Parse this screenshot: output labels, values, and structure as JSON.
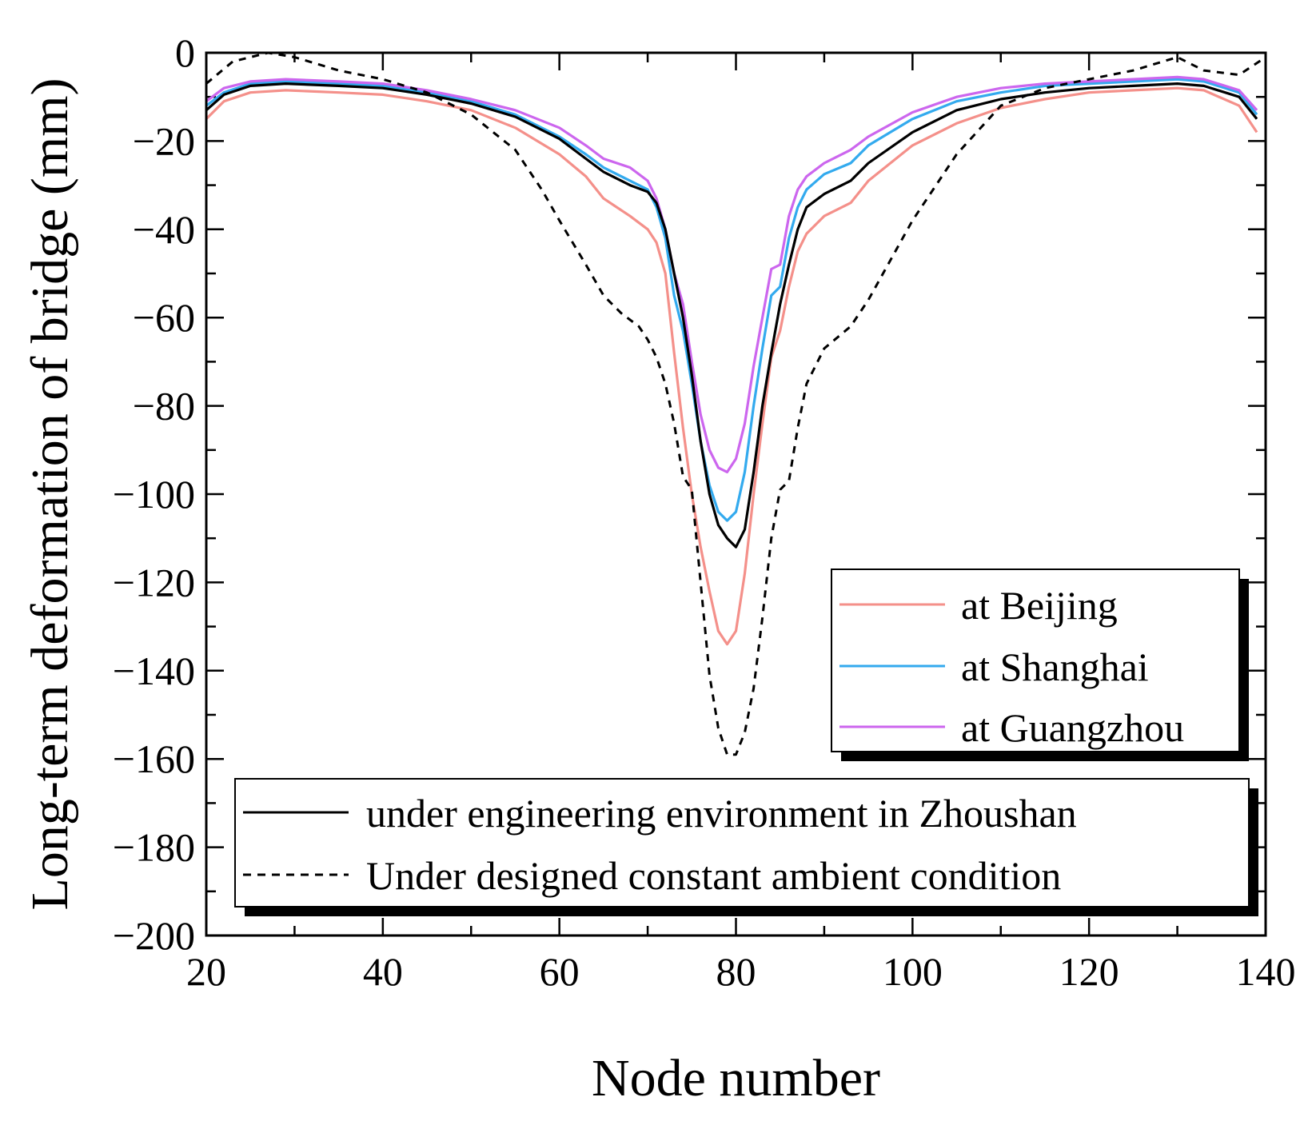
{
  "chart_data": {
    "type": "line",
    "title": "",
    "xlabel": "Node number",
    "ylabel": "Long-term deformation of bridge (mm)",
    "xlim": [
      20,
      140
    ],
    "ylim": [
      -200,
      0
    ],
    "x_ticks": [
      20,
      40,
      60,
      80,
      100,
      120,
      140
    ],
    "y_ticks": [
      0,
      -20,
      -40,
      -60,
      -80,
      -100,
      -120,
      -140,
      -160,
      -180,
      -200
    ],
    "x_tick_labels": [
      "20",
      "40",
      "60",
      "80",
      "100",
      "120",
      "140"
    ],
    "y_tick_labels": [
      "0",
      "−20",
      "−40",
      "−60",
      "−80",
      "−100",
      "−120",
      "−140",
      "−160",
      "−180",
      "−200"
    ],
    "legend_cities": {
      "placement": "center-right",
      "entries": [
        "at Beijing",
        "at Shanghai",
        "at Guangzhou"
      ]
    },
    "legend_conditions": {
      "placement": "bottom-right",
      "entries": [
        "under engineering environment in Zhoushan",
        "Under designed constant ambient condition"
      ]
    },
    "series": [
      {
        "name": "at Beijing",
        "color": "#f4908a",
        "dash": "solid",
        "x": [
          20,
          22,
          25,
          29,
          35,
          40,
          45,
          50,
          55,
          60,
          63,
          65,
          68,
          70,
          71,
          72,
          73,
          74,
          75,
          76,
          77,
          78,
          79,
          80,
          81,
          82,
          83,
          84,
          85,
          86,
          87,
          88,
          90,
          93,
          95,
          100,
          105,
          110,
          115,
          120,
          125,
          130,
          133,
          137,
          139
        ],
        "values": [
          -15,
          -11,
          -9,
          -8.5,
          -9,
          -9.5,
          -11,
          -13,
          -17,
          -23,
          -28,
          -33,
          -37,
          -40,
          -43,
          -50,
          -68,
          -85,
          -100,
          -112,
          -122,
          -131,
          -134,
          -131,
          -118,
          -100,
          -84,
          -69,
          -63,
          -53,
          -45,
          -41,
          -37,
          -34,
          -29,
          -21,
          -16,
          -12.5,
          -10.5,
          -9,
          -8.5,
          -8,
          -8.5,
          -12,
          -18
        ]
      },
      {
        "name": "at Shanghai",
        "color": "#33aaee",
        "dash": "solid",
        "x": [
          20,
          22,
          25,
          29,
          35,
          40,
          45,
          50,
          55,
          60,
          63,
          65,
          68,
          70,
          71,
          72,
          73,
          74,
          75,
          76,
          77,
          78,
          79,
          80,
          81,
          82,
          83,
          84,
          85,
          86,
          87,
          88,
          90,
          93,
          95,
          100,
          105,
          110,
          115,
          120,
          125,
          130,
          133,
          137,
          139
        ],
        "values": [
          -12,
          -9,
          -7,
          -6.5,
          -7,
          -7.5,
          -9,
          -11,
          -14,
          -19,
          -23,
          -26,
          -29,
          -31,
          -35,
          -42,
          -55,
          -63,
          -75,
          -88,
          -98,
          -104,
          -106,
          -104,
          -95,
          -80,
          -67,
          -55,
          -53,
          -42,
          -35,
          -31,
          -27.5,
          -25,
          -21,
          -15,
          -11,
          -9,
          -7.5,
          -7,
          -6.5,
          -6,
          -6.5,
          -9,
          -14
        ]
      },
      {
        "name": "at Guangzhou",
        "color": "#cc66ee",
        "dash": "solid",
        "x": [
          20,
          22,
          25,
          29,
          35,
          40,
          45,
          50,
          55,
          60,
          63,
          65,
          68,
          70,
          71,
          72,
          73,
          74,
          75,
          76,
          77,
          78,
          79,
          80,
          81,
          82,
          83,
          84,
          85,
          86,
          87,
          88,
          90,
          93,
          95,
          100,
          105,
          110,
          115,
          120,
          125,
          130,
          133,
          137,
          139
        ],
        "values": [
          -11,
          -8,
          -6.5,
          -6,
          -6.5,
          -7,
          -8.5,
          -10.5,
          -13,
          -17,
          -21,
          -24,
          -26,
          -29,
          -33,
          -40,
          -50,
          -57,
          -70,
          -82,
          -90,
          -94,
          -95,
          -92,
          -84,
          -71,
          -60,
          -49,
          -48,
          -37,
          -31,
          -28,
          -25,
          -22,
          -19,
          -13.5,
          -10,
          -8,
          -7,
          -6.5,
          -6,
          -5.5,
          -6,
          -8.5,
          -13
        ]
      },
      {
        "name": "under engineering environment in Zhoushan",
        "color": "#000000",
        "dash": "solid",
        "x": [
          20,
          22,
          25,
          29,
          35,
          40,
          45,
          50,
          55,
          60,
          63,
          65,
          68,
          70,
          71,
          72,
          73,
          74,
          75,
          76,
          77,
          78,
          79,
          80,
          81,
          82,
          83,
          84,
          85,
          86,
          87,
          88,
          90,
          93,
          95,
          100,
          105,
          110,
          115,
          120,
          125,
          130,
          133,
          137,
          139
        ],
        "values": [
          -13,
          -9.5,
          -7.5,
          -7,
          -7.5,
          -8,
          -9.5,
          -11.5,
          -14.5,
          -19.5,
          -24,
          -27,
          -30,
          -31.5,
          -34,
          -40,
          -50,
          -60,
          -73,
          -88,
          -100,
          -107,
          -110,
          -112,
          -108,
          -95,
          -80,
          -68,
          -57,
          -48,
          -40,
          -35,
          -32,
          -29,
          -25,
          -18,
          -13,
          -10.5,
          -9,
          -8,
          -7.5,
          -7,
          -7.5,
          -10,
          -15
        ]
      },
      {
        "name": "Under designed constant ambient condition",
        "color": "#000000",
        "dash": "dashed",
        "x": [
          20,
          23,
          27,
          30,
          35,
          40,
          45,
          50,
          55,
          58,
          60,
          63,
          65,
          67,
          69,
          70,
          71,
          72,
          73,
          74,
          75,
          76,
          77,
          78,
          79,
          80,
          81,
          82,
          83,
          84,
          85,
          86,
          87,
          88,
          90,
          93,
          95,
          100,
          105,
          110,
          115,
          120,
          125,
          130,
          133,
          137,
          140
        ],
        "values": [
          -7,
          -2,
          0,
          -1,
          -4,
          -6,
          -9,
          -14,
          -22,
          -31,
          -38,
          -48,
          -55,
          -59,
          -62,
          -65,
          -69,
          -75,
          -84,
          -96,
          -99,
          -120,
          -141,
          -153,
          -159,
          -159,
          -154,
          -144,
          -128,
          -110,
          -99,
          -97,
          -85,
          -75,
          -67,
          -62,
          -56,
          -38,
          -23,
          -12,
          -8,
          -6,
          -4,
          -1,
          -4,
          -5,
          -1
        ]
      }
    ]
  }
}
